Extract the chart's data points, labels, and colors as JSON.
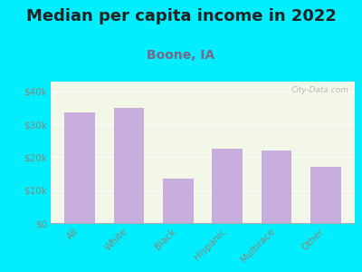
{
  "title": "Median per capita income in 2022",
  "subtitle": "Boone, IA",
  "categories": [
    "All",
    "White",
    "Black",
    "Hispanic",
    "Multirace",
    "Other"
  ],
  "values": [
    33500,
    35000,
    13500,
    22500,
    22000,
    17000
  ],
  "bar_color": "#c8aedd",
  "background_outer": "#00eeff",
  "background_inner": "#f2f7e8",
  "title_color": "#222222",
  "subtitle_color": "#7a6688",
  "tick_label_color": "#888877",
  "ytick_labels": [
    "$0",
    "$10k",
    "$20k",
    "$30k",
    "$40k"
  ],
  "ytick_values": [
    0,
    10000,
    20000,
    30000,
    40000
  ],
  "ylim": [
    0,
    43000
  ],
  "watermark": "City-Data.com",
  "title_fontsize": 13,
  "subtitle_fontsize": 10
}
